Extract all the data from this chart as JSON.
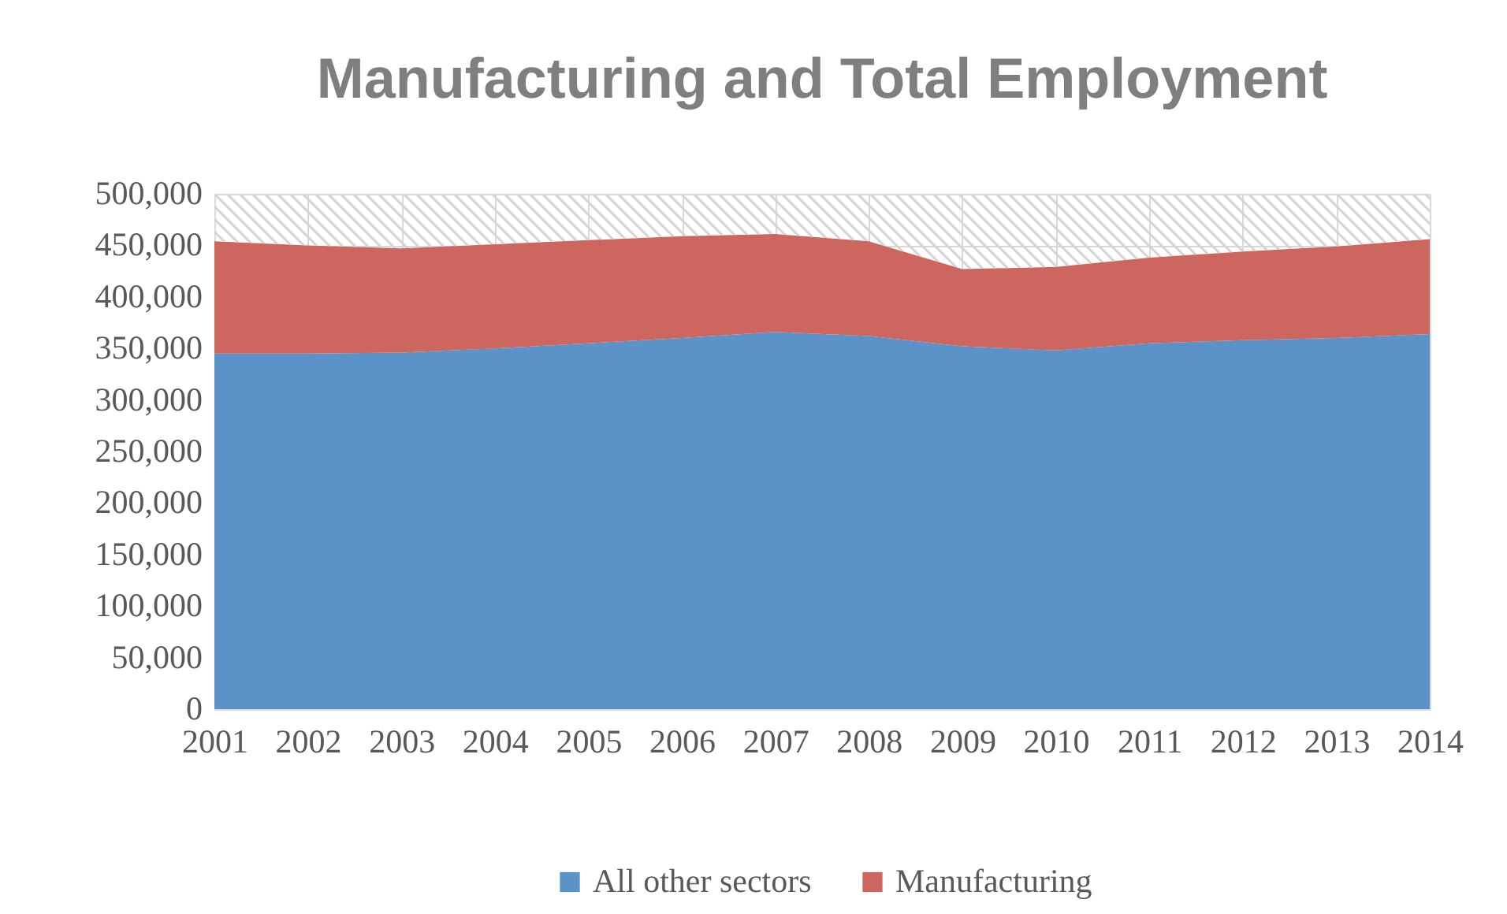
{
  "chart_data": {
    "type": "area",
    "title": "Manufacturing and Total Employment",
    "categories": [
      "2001",
      "2002",
      "2003",
      "2004",
      "2005",
      "2006",
      "2007",
      "2008",
      "2009",
      "2010",
      "2011",
      "2012",
      "2013",
      "2014"
    ],
    "stacked": true,
    "series": [
      {
        "name": "All other sectors",
        "color": "#5b93c8",
        "values": [
          345000,
          345000,
          346000,
          350000,
          355000,
          360000,
          366000,
          362000,
          352000,
          348000,
          355000,
          358000,
          360000,
          364000
        ]
      },
      {
        "name": "Manufacturing",
        "color": "#cc665f",
        "values": [
          109000,
          105000,
          101000,
          101000,
          100000,
          99000,
          95000,
          92000,
          75000,
          81000,
          83000,
          86000,
          89000,
          92000
        ]
      },
      {
        "color": "#d4d4d4",
        "values": [
          46000,
          50000,
          53000,
          49000,
          45000,
          41000,
          39000,
          46000,
          73000,
          71000,
          62000,
          56000,
          51000,
          44000
        ]
      }
    ],
    "ylim": [
      0,
      500000
    ],
    "yticks": [
      0,
      {
        "value": 50000,
        "label": "50,000"
      },
      {
        "value": 100000,
        "label": "100,000"
      },
      {
        "value": 150000,
        "label": "150,000"
      },
      {
        "value": 200000,
        "label": "200,000"
      },
      {
        "value": 250000,
        "label": "250,000"
      },
      {
        "value": 300000,
        "label": "300,000"
      },
      {
        "value": 350000,
        "label": "350,000"
      },
      {
        "value": 400000,
        "label": "400,000"
      },
      {
        "value": 450000,
        "label": "450,000"
      },
      {
        "value": 500000,
        "label": "500,000"
      }
    ],
    "grid": true,
    "legend": "bottom"
  }
}
